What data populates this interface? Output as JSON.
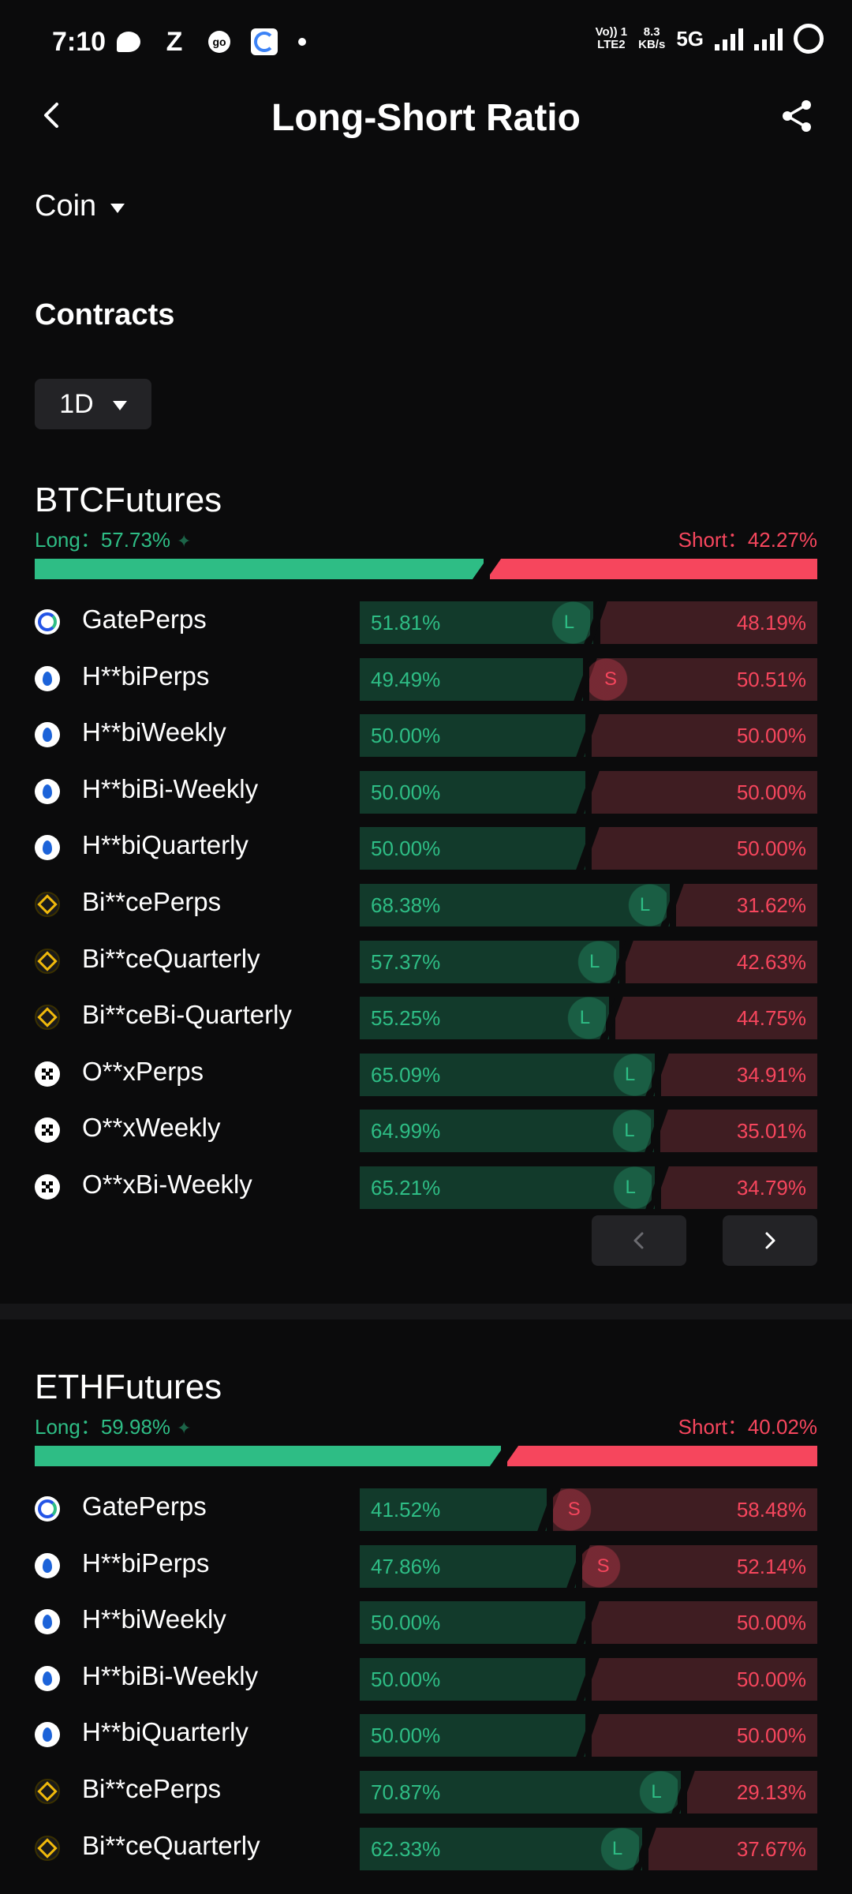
{
  "status_bar": {
    "time": "7:10",
    "z_label": "Z",
    "go_label": "go",
    "network_top": "Vo)) 1",
    "network_bottom": "LTE2",
    "speed_top": "8.3",
    "speed_bottom": "KB/s",
    "gen": "5G"
  },
  "header": {
    "title": "Long-Short Ratio"
  },
  "filters": {
    "coin_label": "Coin",
    "contracts_label": "Contracts",
    "period": "1D"
  },
  "colors": {
    "long": "#2ebd85",
    "short": "#f6465d",
    "background": "#0b0b0c"
  },
  "sections": [
    {
      "title": "BTCFutures",
      "long_label": "Long：57.73%",
      "short_label": "Short：42.27%",
      "long_pct": 57.73,
      "rows": [
        {
          "name": "GatePerps",
          "icon": "gate-icon",
          "long": "51.81%",
          "short": "48.19%",
          "long_value": 51.81,
          "marker": "L"
        },
        {
          "name": "H**biPerps",
          "icon": "huobi-icon",
          "long": "49.49%",
          "short": "50.51%",
          "long_value": 49.49,
          "marker": "S"
        },
        {
          "name": "H**biWeekly",
          "icon": "huobi-icon",
          "long": "50.00%",
          "short": "50.00%",
          "long_value": 50.0,
          "marker": ""
        },
        {
          "name": "H**biBi-Weekly",
          "icon": "huobi-icon",
          "long": "50.00%",
          "short": "50.00%",
          "long_value": 50.0,
          "marker": ""
        },
        {
          "name": "H**biQuarterly",
          "icon": "huobi-icon",
          "long": "50.00%",
          "short": "50.00%",
          "long_value": 50.0,
          "marker": ""
        },
        {
          "name": "Bi**cePerps",
          "icon": "binance-icon",
          "long": "68.38%",
          "short": "31.62%",
          "long_value": 68.38,
          "marker": "L"
        },
        {
          "name": "Bi**ceQuarterly",
          "icon": "binance-icon",
          "long": "57.37%",
          "short": "42.63%",
          "long_value": 57.37,
          "marker": "L"
        },
        {
          "name": "Bi**ceBi-Quarterly",
          "icon": "binance-icon",
          "long": "55.25%",
          "short": "44.75%",
          "long_value": 55.25,
          "marker": "L"
        },
        {
          "name": "O**xPerps",
          "icon": "okx-icon",
          "long": "65.09%",
          "short": "34.91%",
          "long_value": 65.09,
          "marker": "L"
        },
        {
          "name": "O**xWeekly",
          "icon": "okx-icon",
          "long": "64.99%",
          "short": "35.01%",
          "long_value": 64.99,
          "marker": "L"
        },
        {
          "name": "O**xBi-Weekly",
          "icon": "okx-icon",
          "long": "65.21%",
          "short": "34.79%",
          "long_value": 65.21,
          "marker": "L"
        }
      ]
    },
    {
      "title": "ETHFutures",
      "long_label": "Long：59.98%",
      "short_label": "Short：40.02%",
      "long_pct": 59.98,
      "rows": [
        {
          "name": "GatePerps",
          "icon": "gate-icon",
          "long": "41.52%",
          "short": "58.48%",
          "long_value": 41.52,
          "marker": "S"
        },
        {
          "name": "H**biPerps",
          "icon": "huobi-icon",
          "long": "47.86%",
          "short": "52.14%",
          "long_value": 47.86,
          "marker": "S"
        },
        {
          "name": "H**biWeekly",
          "icon": "huobi-icon",
          "long": "50.00%",
          "short": "50.00%",
          "long_value": 50.0,
          "marker": ""
        },
        {
          "name": "H**biBi-Weekly",
          "icon": "huobi-icon",
          "long": "50.00%",
          "short": "50.00%",
          "long_value": 50.0,
          "marker": ""
        },
        {
          "name": "H**biQuarterly",
          "icon": "huobi-icon",
          "long": "50.00%",
          "short": "50.00%",
          "long_value": 50.0,
          "marker": ""
        },
        {
          "name": "Bi**cePerps",
          "icon": "binance-icon",
          "long": "70.87%",
          "short": "29.13%",
          "long_value": 70.87,
          "marker": "L"
        },
        {
          "name": "Bi**ceQuarterly",
          "icon": "binance-icon",
          "long": "62.33%",
          "short": "37.67%",
          "long_value": 62.33,
          "marker": "L"
        }
      ]
    }
  ]
}
